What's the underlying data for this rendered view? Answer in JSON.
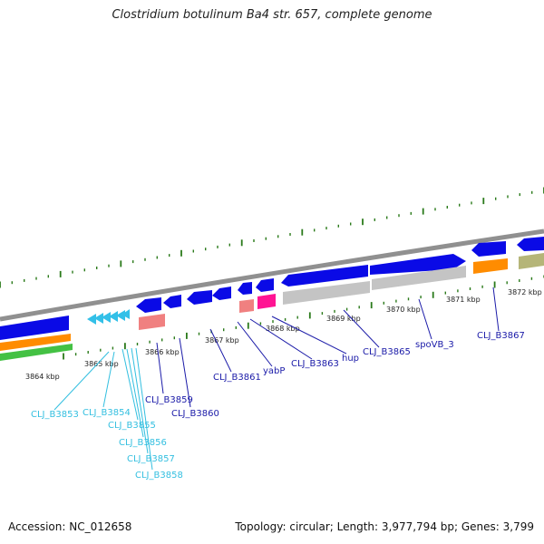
{
  "title": "Clostridium botulinum Ba4 str. 657, complete genome",
  "footer": {
    "accession": "Accession: NC_012658",
    "summary": "Topology: circular; Length: 3,977,794 bp; Genes: 3,799"
  },
  "colors": {
    "backbone": "#8c8c8c",
    "tick": "#2a7a1a",
    "blue_gene": "#0a0ae6",
    "cyan_label": "#33bfe0",
    "blue_label": "#1a1aa8",
    "orange": "#ff8c00",
    "green": "#44c144",
    "gray_gene": "#c4c4c4",
    "pink": "#f08080",
    "magenta": "#ff1493",
    "olive": "#b5b578"
  },
  "kbp_labels": [
    "3864 kbp",
    "3865 kbp",
    "3866 kbp",
    "3867 kbp",
    "3868 kbp",
    "3869 kbp",
    "3870 kbp",
    "3871 kbp",
    "3872 kbp"
  ],
  "gene_labels": {
    "cyan": [
      "CLJ_B3853",
      "CLJ_B3854",
      "CLJ_B3855",
      "CLJ_B3856",
      "CLJ_B3857",
      "CLJ_B3858"
    ],
    "blue": [
      "CLJ_B3859",
      "CLJ_B3860",
      "CLJ_B3861",
      "yabP",
      "CLJ_B3863",
      "hup",
      "CLJ_B3865",
      "spoVB_3",
      "CLJ_B3867"
    ]
  }
}
